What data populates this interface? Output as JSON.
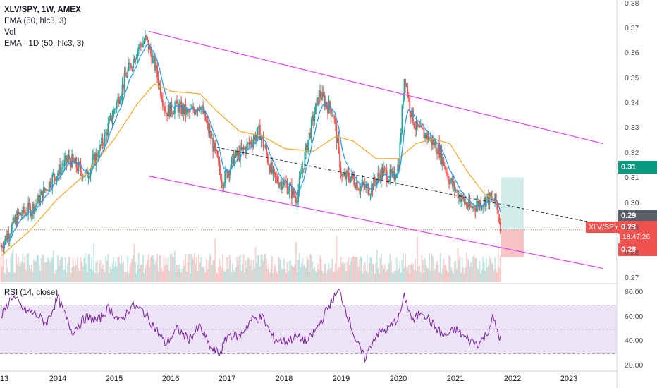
{
  "header": {
    "title": "XLV/SPY, 1W, AMEX",
    "indicators": [
      "EMA (50, hlc3, 3)",
      "Vol",
      "EMA · 1D (50, hlc3, 3)"
    ],
    "rsi_label": "RSI (14, close)"
  },
  "price_tags": {
    "green": "0.31",
    "gray": "0.29",
    "symbol": "XLV/SPY",
    "red": "0.29",
    "countdown": "18:47:26",
    "red2": "0.28"
  },
  "colors": {
    "up": "#26a69a",
    "down": "#ef5350",
    "ema_fast": "#2196f3",
    "ema_slow": "#f5a623",
    "channel": "#e040fb",
    "rsi": "#7b1fa2",
    "rsi_band": "#ede3f7",
    "target_up": "#b2dfdb",
    "target_down": "#f7b0b0"
  },
  "chart_data": [
    {
      "type": "candlestick",
      "title": "XLV/SPY, 1W, AMEX",
      "x_tick_labels": [
        "13",
        "2014",
        "2015",
        "2016",
        "2017",
        "2018",
        "2019",
        "2020",
        "2021",
        "2022",
        "2023"
      ],
      "y_tick_labels": [
        "0.38",
        "0.37",
        "0.36",
        "0.35",
        "0.34",
        "0.33",
        "0.32",
        "0.31",
        "0.30",
        "0.29",
        "0.28",
        "0.27"
      ],
      "ylim": [
        0.2685,
        0.381
      ],
      "xlim": [
        2013.0,
        2024.0
      ],
      "price_series": {
        "x": [
          2013.0,
          2013.3,
          2013.6,
          2013.9,
          2014.2,
          2014.5,
          2014.8,
          2015.0,
          2015.2,
          2015.4,
          2015.55,
          2015.7,
          2015.9,
          2016.1,
          2016.3,
          2016.5,
          2016.7,
          2016.9,
          2017.1,
          2017.3,
          2017.55,
          2017.8,
          2018.0,
          2018.2,
          2018.4,
          2018.6,
          2018.85,
          2019.0,
          2019.15,
          2019.3,
          2019.5,
          2019.7,
          2019.9,
          2020.0,
          2020.1,
          2020.2,
          2020.3,
          2020.5,
          2020.7,
          2020.9,
          2021.1,
          2021.25,
          2021.4,
          2021.55,
          2021.7,
          2021.8
        ],
        "close": [
          0.283,
          0.295,
          0.299,
          0.31,
          0.318,
          0.311,
          0.325,
          0.338,
          0.351,
          0.362,
          0.366,
          0.356,
          0.337,
          0.339,
          0.336,
          0.34,
          0.326,
          0.309,
          0.318,
          0.322,
          0.329,
          0.31,
          0.308,
          0.302,
          0.325,
          0.344,
          0.336,
          0.31,
          0.311,
          0.307,
          0.306,
          0.313,
          0.31,
          0.316,
          0.352,
          0.338,
          0.33,
          0.327,
          0.322,
          0.309,
          0.302,
          0.298,
          0.3,
          0.302,
          0.301,
          0.29
        ]
      },
      "volume_bars": "per-week volume columns (unlabeled)",
      "ema_slow_series": {
        "x": [
          2013.0,
          2013.5,
          2014.0,
          2014.5,
          2015.0,
          2015.4,
          2015.7,
          2016.0,
          2016.5,
          2016.8,
          2017.2,
          2017.6,
          2018.0,
          2018.5,
          2018.9,
          2019.2,
          2019.6,
          2020.0,
          2020.3,
          2020.6,
          2020.9,
          2021.2,
          2021.5,
          2021.75
        ],
        "values": [
          0.279,
          0.289,
          0.302,
          0.312,
          0.326,
          0.34,
          0.348,
          0.345,
          0.344,
          0.337,
          0.329,
          0.327,
          0.322,
          0.321,
          0.327,
          0.325,
          0.318,
          0.318,
          0.324,
          0.326,
          0.324,
          0.313,
          0.304,
          0.301
        ]
      },
      "trend_lines": {
        "channel_upper": {
          "x": [
            2015.6,
            2023.6
          ],
          "y": [
            0.369,
            0.324
          ]
        },
        "channel_lower": {
          "x": [
            2015.6,
            2023.6
          ],
          "y": [
            0.311,
            0.274
          ]
        },
        "midline_dashed": {
          "x": [
            2016.8,
            2023.6
          ],
          "y": [
            0.3225,
            0.2915
          ]
        }
      },
      "target_box": {
        "x": [
          2021.8,
          2022.2
        ],
        "y_up": [
          0.2895,
          0.3105
        ],
        "y_down": [
          0.2785,
          0.2895
        ]
      }
    },
    {
      "type": "line",
      "title": "RSI (14, close)",
      "y_tick_labels": [
        "80.00",
        "60.00",
        "40.00",
        "20.00"
      ],
      "ylim": [
        18,
        86
      ],
      "band": [
        30,
        70
      ],
      "midline": 50,
      "x": [
        2013.0,
        2013.2,
        2013.4,
        2013.6,
        2013.8,
        2014.0,
        2014.25,
        2014.5,
        2014.7,
        2014.9,
        2015.1,
        2015.3,
        2015.5,
        2015.7,
        2015.9,
        2016.1,
        2016.3,
        2016.5,
        2016.7,
        2016.85,
        2017.0,
        2017.2,
        2017.4,
        2017.6,
        2017.8,
        2018.0,
        2018.2,
        2018.4,
        2018.6,
        2018.8,
        2018.95,
        2019.1,
        2019.25,
        2019.4,
        2019.6,
        2019.8,
        2020.0,
        2020.1,
        2020.25,
        2020.4,
        2020.6,
        2020.8,
        2021.0,
        2021.2,
        2021.4,
        2021.55,
        2021.65,
        2021.8
      ],
      "values": [
        60,
        78,
        66,
        63,
        55,
        76,
        48,
        60,
        57,
        68,
        56,
        70,
        65,
        52,
        38,
        50,
        42,
        52,
        34,
        30,
        46,
        44,
        58,
        60,
        42,
        40,
        44,
        40,
        54,
        72,
        82,
        62,
        40,
        26,
        46,
        50,
        60,
        77,
        56,
        66,
        54,
        44,
        50,
        42,
        38,
        46,
        60,
        40
      ]
    }
  ]
}
